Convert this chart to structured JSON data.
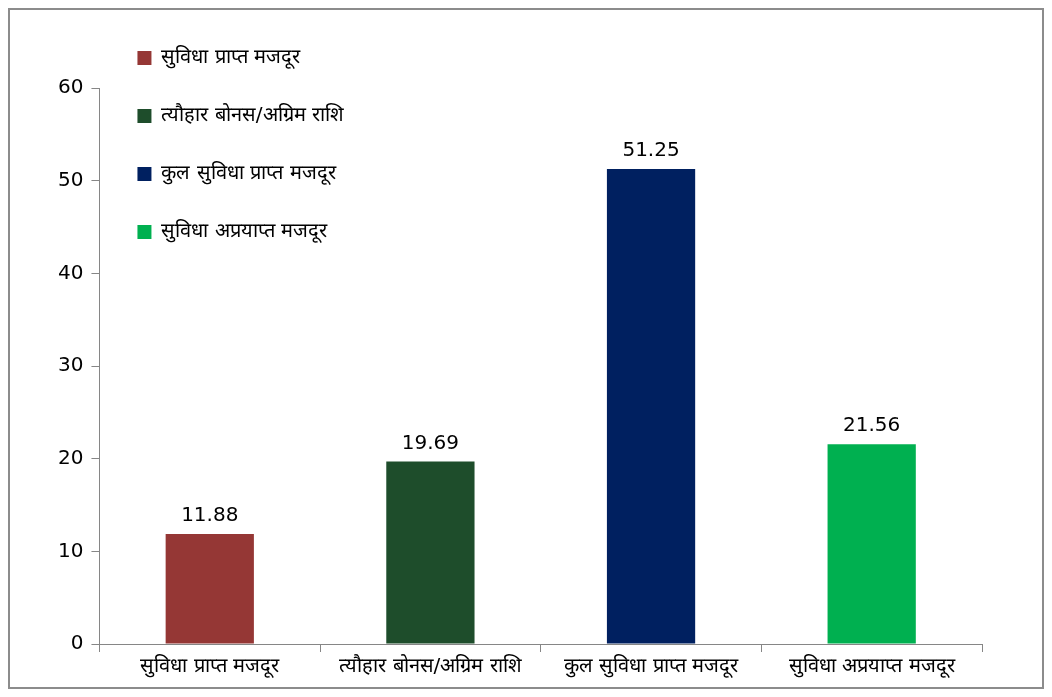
{
  "chart_data": {
    "type": "bar",
    "categories": [
      "सुविधा प्राप्त मजदूर",
      "त्यौहार बोनस/अग्रिम राशि",
      "कुल सुविधा प्राप्त मजदूर",
      "सुविधा अप्रयाप्त मजदूर"
    ],
    "series": [
      {
        "name": "सुविधा प्राप्त मजदूर",
        "color": "#953735",
        "values": [
          11.88,
          null,
          null,
          null
        ]
      },
      {
        "name": "त्यौहार बोनस/अग्रिम राशि",
        "color": "#1e4d2b",
        "values": [
          null,
          19.69,
          null,
          null
        ]
      },
      {
        "name": "कुल सुविधा प्राप्त मजदूर",
        "color": "#002060",
        "values": [
          null,
          null,
          51.25,
          null
        ]
      },
      {
        "name": "सुविधा अप्रयाप्त मजदूर",
        "color": "#00b050",
        "values": [
          null,
          null,
          null,
          21.56
        ]
      }
    ],
    "ylim": [
      0,
      60
    ],
    "yticks": [
      0,
      10,
      20,
      30,
      40,
      50,
      60
    ],
    "grid": false,
    "legend": "top left",
    "data_labels": true
  }
}
